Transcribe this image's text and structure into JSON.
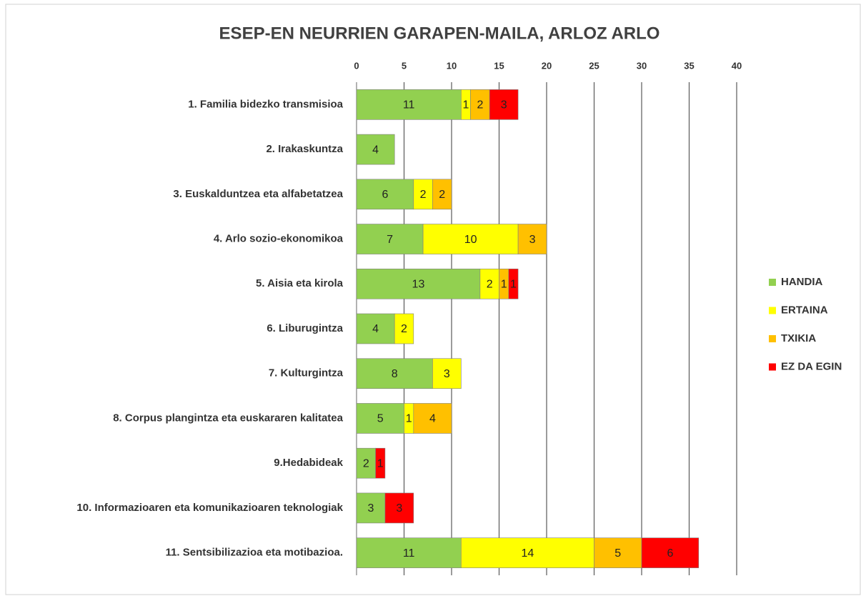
{
  "chart_data": {
    "type": "stacked_bar_horizontal",
    "title": "ESEP-EN NEURRIEN GARAPEN-MAILA, ARLOZ ARLO",
    "categories": [
      "1. Familia bidezko transmisioa",
      "2. Irakaskuntza",
      "3. Euskalduntzea eta alfabetatzea",
      "4. Arlo sozio-ekonomikoa",
      "5. Aisia eta kirola",
      "6. Liburugintza",
      "7. Kulturgintza",
      "8. Corpus plangintza eta euskararen kalitatea",
      "9.Hedabideak",
      "10. Informazioaren eta komunikazioaren teknologiak",
      "11. Sentsibilizazioa eta motibazioa."
    ],
    "series": [
      {
        "name": "HANDIA",
        "color": "#92d050",
        "values": [
          11,
          4,
          6,
          7,
          13,
          4,
          8,
          5,
          2,
          3,
          11
        ]
      },
      {
        "name": "ERTAINA",
        "color": "#ffff00",
        "values": [
          1,
          null,
          2,
          10,
          2,
          2,
          3,
          1,
          null,
          null,
          14
        ]
      },
      {
        "name": "TXIKIA",
        "color": "#ffc000",
        "values": [
          2,
          null,
          2,
          3,
          1,
          null,
          null,
          4,
          null,
          null,
          5
        ]
      },
      {
        "name": "EZ DA EGIN",
        "color": "#ff0000",
        "values": [
          3,
          null,
          null,
          null,
          1,
          null,
          null,
          null,
          1,
          3,
          6
        ]
      }
    ],
    "xlim": [
      0,
      40
    ],
    "xticks": [
      0,
      5,
      10,
      15,
      20,
      25,
      30,
      35,
      40
    ],
    "grid": true,
    "legend": "right"
  }
}
